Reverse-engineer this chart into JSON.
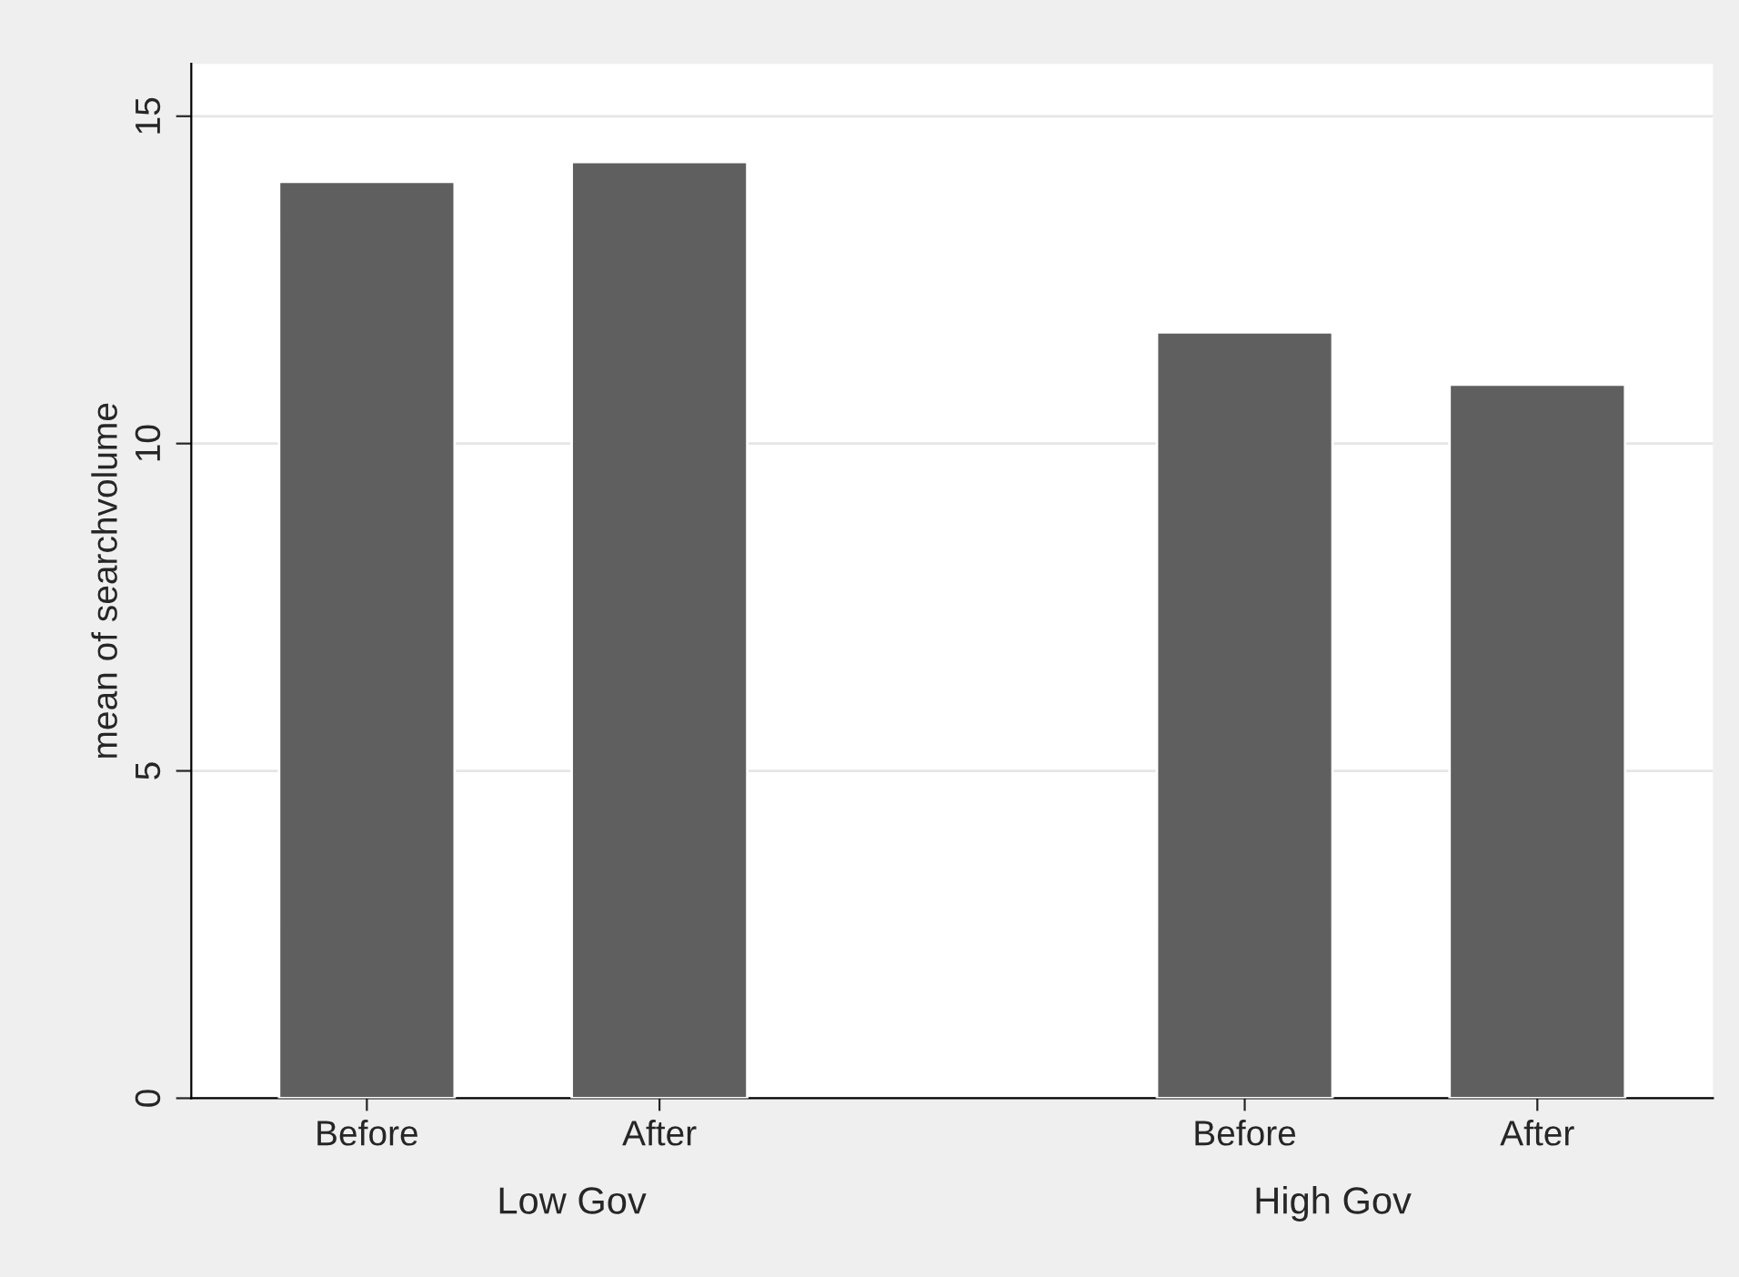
{
  "chart_data": {
    "type": "bar",
    "ylabel": "mean of searchvolume",
    "categories": [
      "Before",
      "After",
      null,
      "Before",
      "After"
    ],
    "values": [
      14.0,
      14.3,
      null,
      11.7,
      10.9
    ],
    "color": "#5f5f5f",
    "ylim": [
      0,
      15.8
    ],
    "yticks": [
      0,
      5,
      10,
      15
    ],
    "grid": "y",
    "annotations": [
      "Low Gov",
      "High Gov"
    ]
  }
}
